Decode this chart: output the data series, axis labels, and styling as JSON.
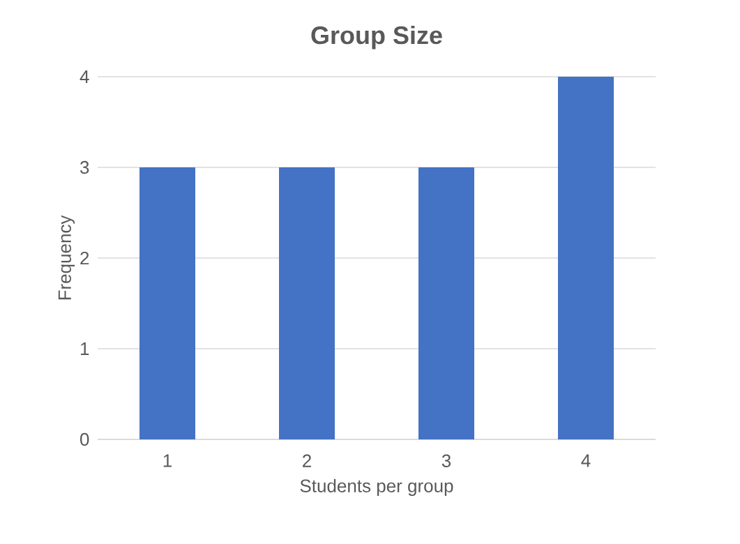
{
  "chart_data": {
    "type": "bar",
    "title": "Group Size",
    "xlabel": "Students per group",
    "ylabel": "Frequency",
    "categories": [
      "1",
      "2",
      "3",
      "4"
    ],
    "values": [
      3,
      3,
      3,
      4
    ],
    "color": "#4472c4",
    "ylim": [
      0,
      4
    ],
    "yticks": [
      0,
      1,
      2,
      3,
      4
    ],
    "grid": "y"
  }
}
